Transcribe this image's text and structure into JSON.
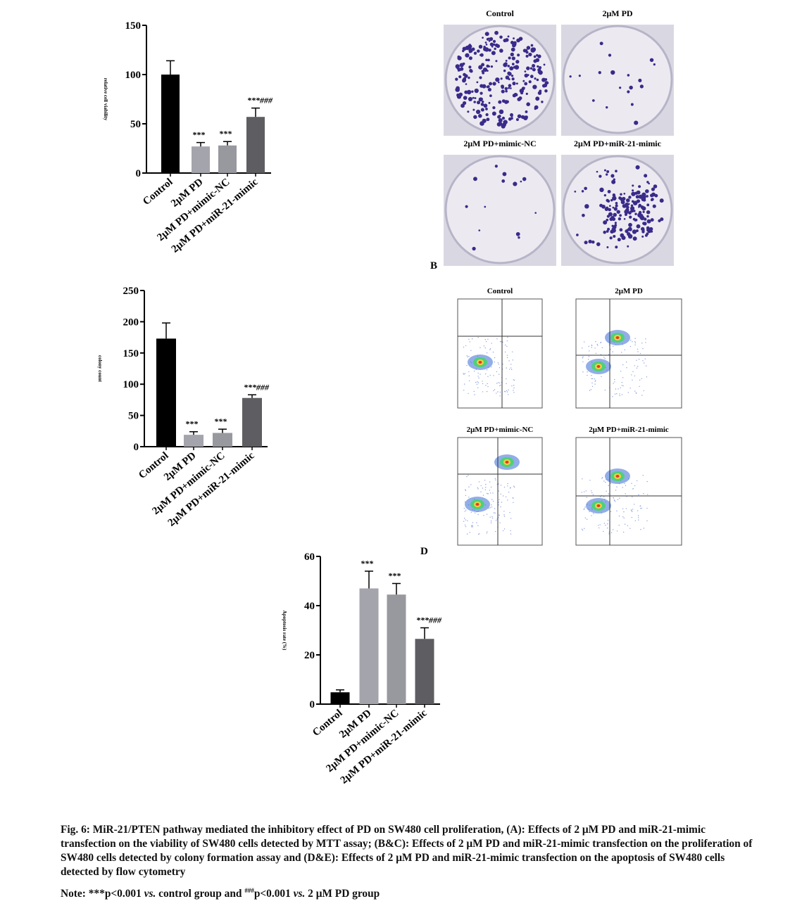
{
  "chart_data": [
    {
      "type": "bar",
      "ylabel": "relative cell viability",
      "categories": [
        "Control",
        "2μM PD",
        "2μM PD+mimic-NC",
        "2μM PD+miR-21-mimic"
      ],
      "values": [
        100,
        27,
        28,
        57
      ],
      "errors": [
        14,
        4,
        4,
        9
      ],
      "annotations": [
        null,
        "***",
        "***",
        "***###"
      ],
      "colors": [
        "#000000",
        "#a4a4ac",
        "#98989f",
        "#5e5e62"
      ],
      "ylim": [
        0,
        150
      ],
      "yticks": [
        0,
        50,
        100,
        150
      ]
    },
    {
      "type": "bar",
      "ylabel": "colony count",
      "categories": [
        "Control",
        "2μM PD",
        "2μM PD+mimic-NC",
        "2μM PD+miR-21-mimic"
      ],
      "values": [
        173,
        19,
        22,
        78
      ],
      "errors": [
        25,
        5,
        6,
        5
      ],
      "annotations": [
        null,
        "***",
        "***",
        "***###"
      ],
      "colors": [
        "#000000",
        "#a4a4ac",
        "#98989f",
        "#5e5e62"
      ],
      "ylim": [
        0,
        250
      ],
      "yticks": [
        0,
        50,
        100,
        150,
        200,
        250
      ]
    },
    {
      "type": "bar",
      "ylabel": "Apoptosis rate (%)",
      "categories": [
        "Control",
        "2μM PD",
        "2μM PD+mimic-NC",
        "2μM PD+miR-21-mimic"
      ],
      "values": [
        4.8,
        47,
        44.5,
        26.5
      ],
      "errors": [
        1,
        7,
        4.5,
        4.5
      ],
      "annotations": [
        null,
        "***",
        "***",
        "***###"
      ],
      "colors": [
        "#000000",
        "#a4a4ac",
        "#98989f",
        "#5e5e62"
      ],
      "ylim": [
        0,
        60
      ],
      "yticks": [
        0,
        20,
        40,
        60
      ]
    }
  ],
  "panel_b": {
    "label": "B",
    "titles": [
      "Control",
      "2μM PD",
      "2μM PD+mimic-NC",
      "2μM PD+miR-21-mimic"
    ]
  },
  "panel_d": {
    "label": "D",
    "titles": [
      "Control",
      "2μM PD",
      "2μM PD+mimic-NC",
      "2μM PD+miR-21-mimic"
    ]
  },
  "caption": "Fig. 6: MiR-21/PTEN pathway mediated the inhibitory effect of PD on SW480 cell proliferation, (A): Effects of 2 μM PD and miR-21-mimic transfection on the viability of SW480 cells detected by MTT assay; (B&C): Effects of 2 μM PD and miR-21-mimic transfection on the proliferation of SW480 cells detected by colony formation assay and (D&E): Effects of 2 μM PD and miR-21-mimic transfection on the apoptosis of SW480 cells detected by flow cytometry",
  "note": [
    "Note: ***p<0.001 ",
    "vs.",
    " control group and ",
    "###",
    "p<0.001 ",
    "vs.",
    " 2 μM PD group"
  ]
}
